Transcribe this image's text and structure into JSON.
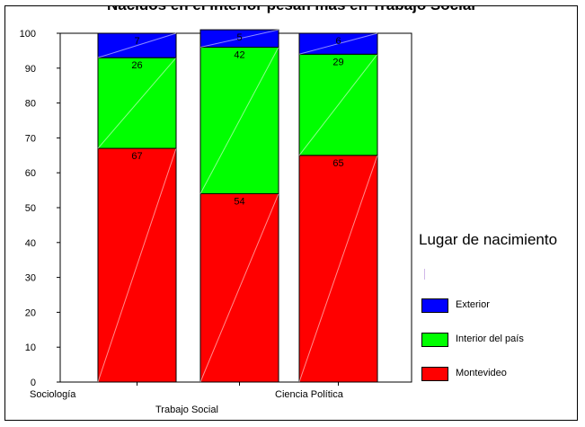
{
  "chart_data": {
    "type": "bar",
    "stacked": true,
    "title": "Nacidos en el interior pesan más en Trabajo Social",
    "categories": [
      "Sociología",
      "Trabajo Social",
      "Ciencia Política"
    ],
    "series": [
      {
        "name": "Montevideo",
        "color": "#ff0000",
        "values": [
          67,
          54,
          65
        ]
      },
      {
        "name": "Interior del país",
        "color": "#00ff00",
        "values": [
          26,
          42,
          29
        ]
      },
      {
        "name": "Exterior",
        "color": "#0000ff",
        "values": [
          7,
          5,
          6
        ]
      }
    ],
    "ylim": [
      0,
      100
    ],
    "yticks": [
      0,
      10,
      20,
      30,
      40,
      50,
      60,
      70,
      80,
      90,
      100
    ],
    "legend": {
      "title": "Lugar de nacimiento",
      "position": "right"
    }
  }
}
